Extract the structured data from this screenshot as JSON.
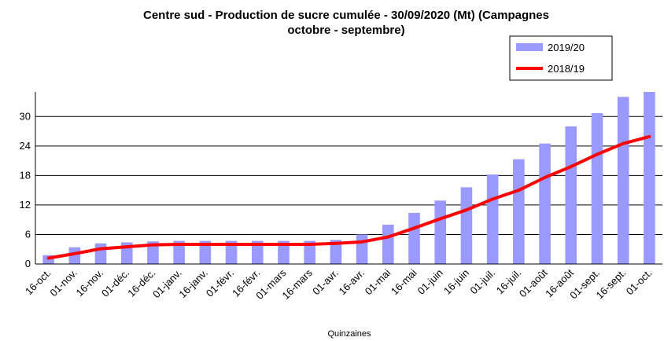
{
  "chart_data": {
    "type": "bar_line",
    "title": [
      "Centre sud - Production de sucre cumulée - 30/09/2020 (Mt) (Campagnes",
      "octobre - septembre)"
    ],
    "x_label": "Quinzaines",
    "categories": [
      "16-oct.",
      "01-nov.",
      "16-nov.",
      "01-déc.",
      "16-déc.",
      "01-janv.",
      "16-janv.",
      "01-févr.",
      "16-févr.",
      "01-mars",
      "16-mars",
      "01-avr.",
      "16-avr.",
      "01-mai",
      "16-mai",
      "01-juin",
      "16-juin",
      "01-juil.",
      "16-juil.",
      "01-août",
      "16-août",
      "01-sept.",
      "16-sept.",
      "01-oct."
    ],
    "series": [
      {
        "name": "2019/20",
        "type": "bar",
        "color": "#9999ff",
        "values": [
          1.8,
          3.4,
          4.2,
          4.4,
          4.6,
          4.7,
          4.7,
          4.7,
          4.7,
          4.7,
          4.7,
          4.9,
          6.0,
          8.0,
          10.4,
          12.9,
          15.6,
          18.2,
          21.3,
          24.5,
          28.0,
          30.7,
          34.0,
          35.0
        ]
      },
      {
        "name": "2018/19",
        "type": "line",
        "color": "#ff0000",
        "values": [
          1.2,
          2.1,
          3.1,
          3.5,
          3.9,
          4.0,
          4.0,
          4.0,
          4.0,
          4.0,
          4.0,
          4.2,
          4.5,
          5.5,
          7.3,
          9.2,
          11.0,
          13.2,
          15.0,
          17.6,
          19.8,
          22.3,
          24.5,
          25.9
        ]
      }
    ],
    "ylim": [
      0,
      35
    ],
    "yticks": [
      0,
      6,
      12,
      18,
      24,
      30
    ],
    "grid": true,
    "legend": "top-right"
  }
}
